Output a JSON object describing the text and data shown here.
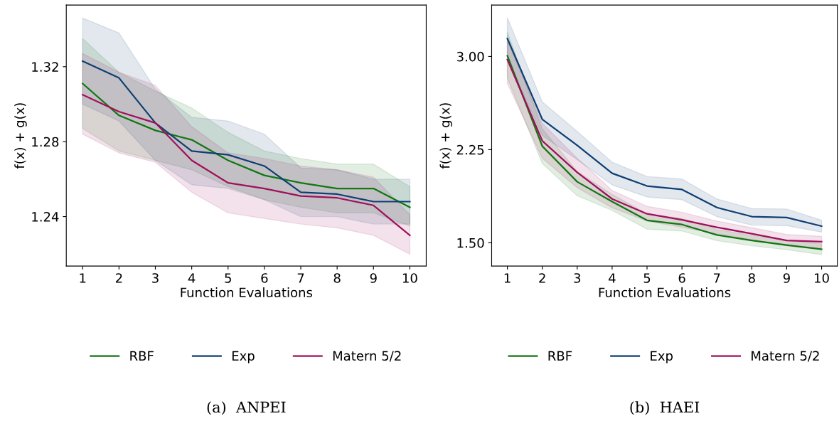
{
  "chart_data": [
    {
      "type": "line",
      "xlabel": "Function Evaluations",
      "ylabel": "f(x) + g(x)",
      "x": [
        1,
        2,
        3,
        4,
        5,
        6,
        7,
        8,
        9,
        10
      ],
      "xlim": [
        0.55,
        10.45
      ],
      "xticks": [
        1,
        2,
        3,
        4,
        5,
        6,
        7,
        8,
        9,
        10
      ],
      "ylim": [
        1.2136,
        1.3529
      ],
      "yticks": [
        1.32,
        1.28,
        1.24
      ],
      "legend": "bottom",
      "grid": false,
      "annotations": [
        "(a)  ANPEI"
      ],
      "series": [
        {
          "name": "RBF",
          "color": "#117711",
          "values": [
            1.311,
            1.294,
            1.286,
            1.281,
            1.27,
            1.262,
            1.258,
            1.255,
            1.255,
            1.245
          ],
          "upper": [
            1.335,
            1.317,
            1.307,
            1.298,
            1.285,
            1.275,
            1.271,
            1.268,
            1.268,
            1.256
          ],
          "lower": [
            1.287,
            1.275,
            1.27,
            1.265,
            1.256,
            1.249,
            1.245,
            1.242,
            1.242,
            1.235
          ]
        },
        {
          "name": "Exp",
          "color": "#0e3f73",
          "values": [
            1.323,
            1.314,
            1.29,
            1.275,
            1.273,
            1.267,
            1.253,
            1.252,
            1.248,
            1.248
          ],
          "upper": [
            1.346,
            1.338,
            1.308,
            1.293,
            1.291,
            1.284,
            1.266,
            1.265,
            1.26,
            1.26
          ],
          "lower": [
            1.3,
            1.291,
            1.27,
            1.257,
            1.255,
            1.249,
            1.24,
            1.24,
            1.236,
            1.236
          ]
        },
        {
          "name": "Matern 5/2",
          "color": "#a0105a",
          "values": [
            1.305,
            1.296,
            1.29,
            1.27,
            1.258,
            1.255,
            1.251,
            1.25,
            1.246,
            1.23
          ],
          "upper": [
            1.327,
            1.317,
            1.31,
            1.288,
            1.274,
            1.271,
            1.267,
            1.265,
            1.261,
            1.241
          ],
          "lower": [
            1.284,
            1.274,
            1.269,
            1.253,
            1.242,
            1.239,
            1.236,
            1.234,
            1.23,
            1.22
          ]
        }
      ]
    },
    {
      "type": "line",
      "xlabel": "Function Evaluations",
      "ylabel": "f(x) + g(x)",
      "x": [
        1,
        2,
        3,
        4,
        5,
        6,
        7,
        8,
        9,
        10
      ],
      "xlim": [
        0.55,
        10.45
      ],
      "xticks": [
        1,
        2,
        3,
        4,
        5,
        6,
        7,
        8,
        9,
        10
      ],
      "ylim": [
        1.3125,
        3.414
      ],
      "yticks": [
        {
          "value": 3.0,
          "label": "3.00"
        },
        {
          "value": 2.25,
          "label": "2.25"
        },
        {
          "value": 1.5,
          "label": "1.50"
        }
      ],
      "legend": "bottom",
      "grid": false,
      "annotations": [
        "(b)  HAEI"
      ],
      "series": [
        {
          "name": "RBF",
          "color": "#117711",
          "values": [
            3.006,
            2.278,
            1.991,
            1.832,
            1.681,
            1.647,
            1.563,
            1.519,
            1.481,
            1.448
          ],
          "upper": [
            3.194,
            2.418,
            2.073,
            1.89,
            1.733,
            1.696,
            1.606,
            1.56,
            1.519,
            1.491
          ],
          "lower": [
            2.828,
            2.138,
            1.879,
            1.761,
            1.61,
            1.595,
            1.517,
            1.476,
            1.444,
            1.405
          ]
        },
        {
          "name": "Exp",
          "color": "#0e3f73",
          "values": [
            3.144,
            2.494,
            2.284,
            2.06,
            1.957,
            1.929,
            1.784,
            1.711,
            1.703,
            1.634
          ],
          "upper": [
            3.31,
            2.634,
            2.397,
            2.149,
            2.034,
            2.013,
            1.853,
            1.776,
            1.772,
            1.681
          ],
          "lower": [
            2.978,
            2.364,
            2.17,
            1.966,
            1.869,
            1.847,
            1.711,
            1.642,
            1.638,
            1.586
          ]
        },
        {
          "name": "Matern 5/2",
          "color": "#a0105a",
          "values": [
            2.974,
            2.321,
            2.067,
            1.853,
            1.733,
            1.685,
            1.625,
            1.573,
            1.519,
            1.509
          ],
          "upper": [
            3.129,
            2.461,
            2.181,
            1.922,
            1.793,
            1.746,
            1.675,
            1.621,
            1.567,
            1.552
          ],
          "lower": [
            2.784,
            2.181,
            1.944,
            1.782,
            1.675,
            1.625,
            1.573,
            1.524,
            1.474,
            1.459
          ]
        }
      ]
    }
  ]
}
